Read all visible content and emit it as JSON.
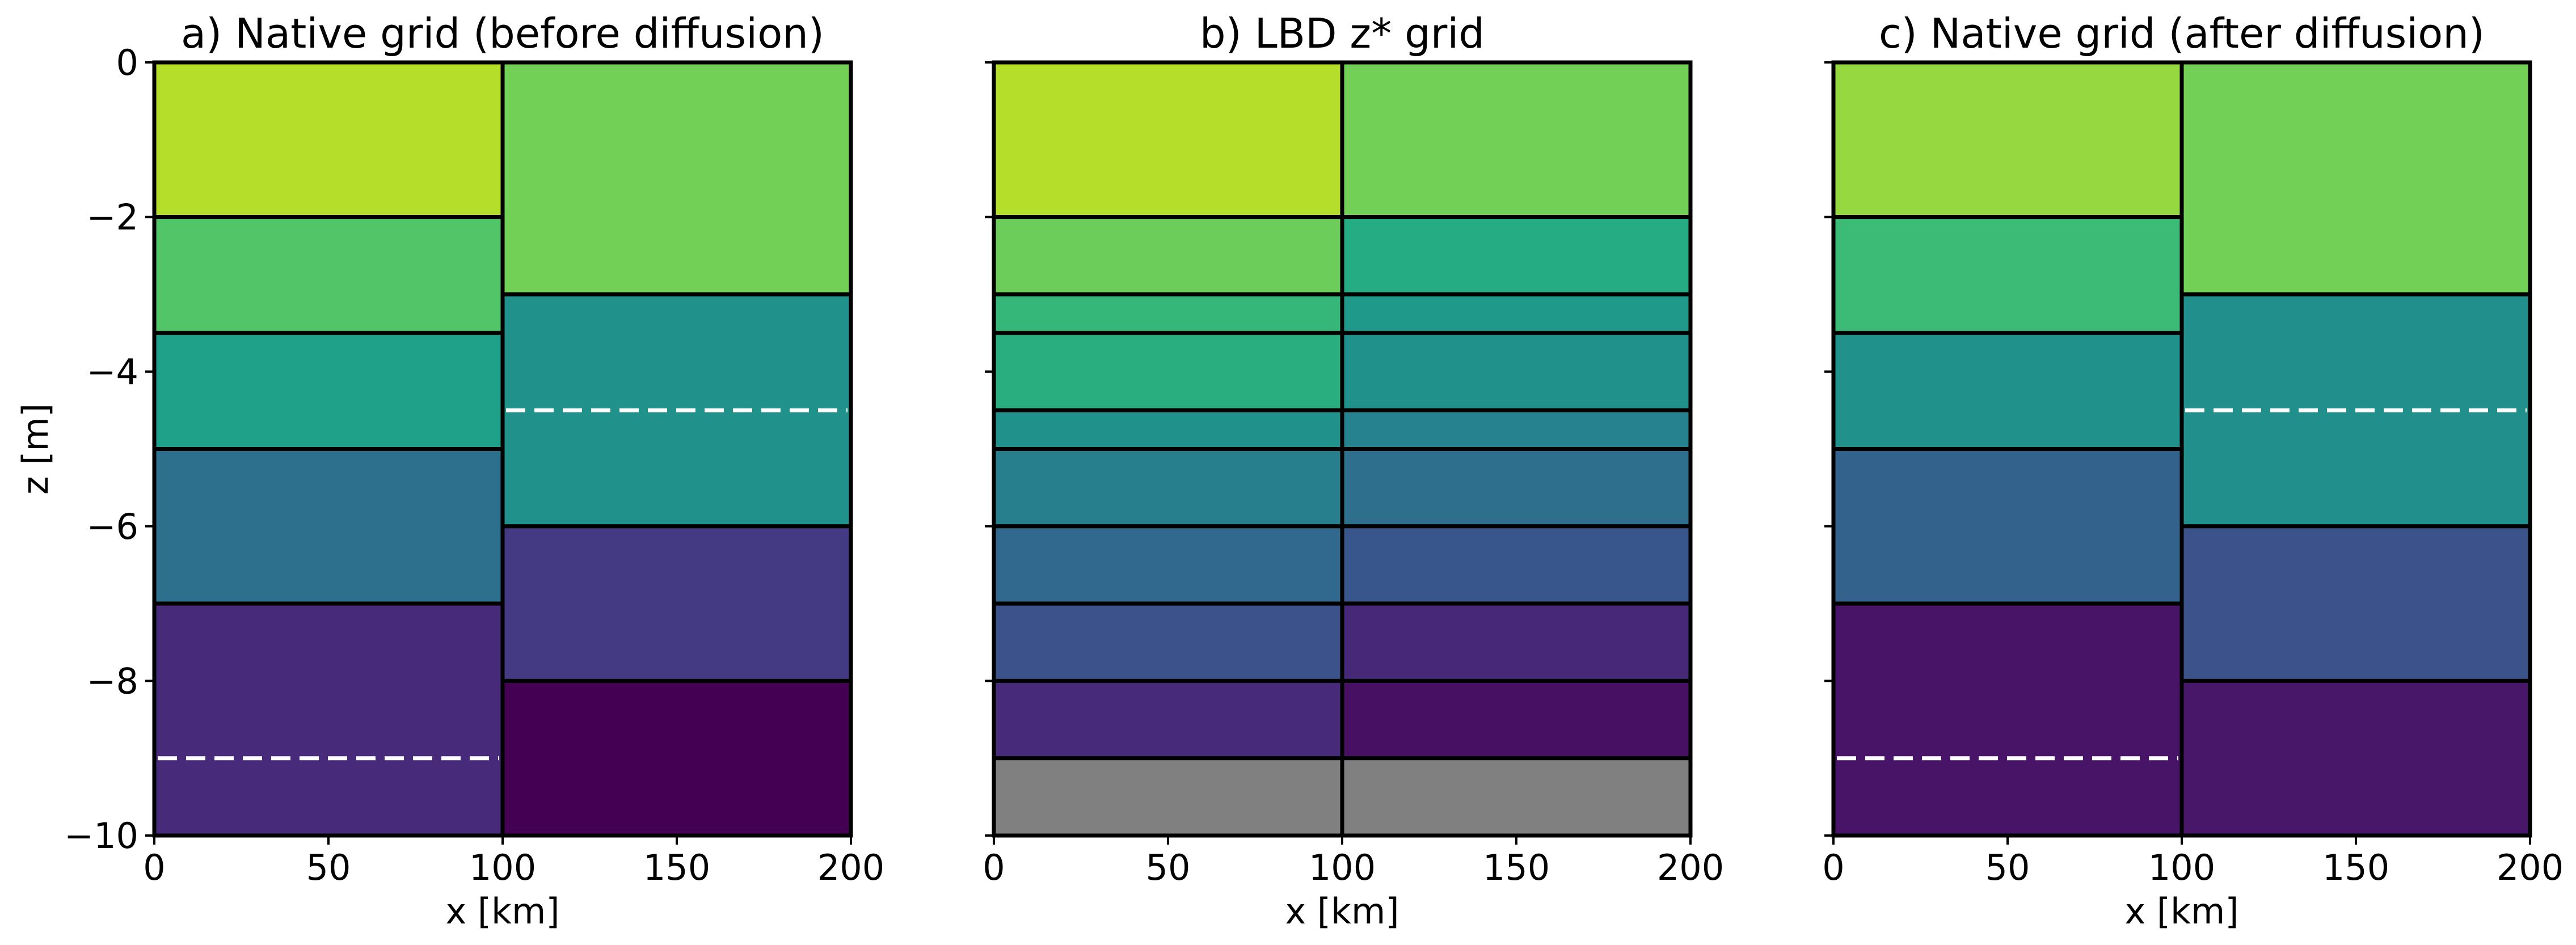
{
  "chart_data": [
    {
      "type": "heatmap",
      "title": "a) Native grid (before diffusion)",
      "xlabel": "x [km]",
      "ylabel": "z [m]",
      "xlim": [
        0,
        200
      ],
      "ylim": [
        -10,
        0
      ],
      "xticks": [
        "0",
        "50",
        "100",
        "150",
        "200"
      ],
      "yticks": [
        "0",
        "−2",
        "−4",
        "−6",
        "−8",
        "−10"
      ],
      "show_yticklabels": true,
      "columns": [
        {
          "x": [
            0,
            100
          ],
          "cells": [
            {
              "top": 0,
              "bottom": -2,
              "color": "#b5de2b"
            },
            {
              "top": -2,
              "bottom": -3.5,
              "color": "#52c569"
            },
            {
              "top": -3.5,
              "bottom": -5,
              "color": "#1fa088"
            },
            {
              "top": -5,
              "bottom": -7,
              "color": "#2d708e"
            },
            {
              "top": -7,
              "bottom": -10,
              "color": "#472a7a"
            }
          ],
          "dashed_lines": [
            -9
          ]
        },
        {
          "x": [
            100,
            200
          ],
          "cells": [
            {
              "top": 0,
              "bottom": -3,
              "color": "#73d056"
            },
            {
              "top": -3,
              "bottom": -6,
              "color": "#21918c"
            },
            {
              "top": -6,
              "bottom": -8,
              "color": "#443983"
            },
            {
              "top": -8,
              "bottom": -10,
              "color": "#440154"
            }
          ],
          "dashed_lines": [
            -4.5
          ]
        }
      ]
    },
    {
      "type": "heatmap",
      "title": "b) LBD z* grid",
      "xlabel": "x [km]",
      "ylabel": "",
      "xlim": [
        0,
        200
      ],
      "ylim": [
        -10,
        0
      ],
      "xticks": [
        "0",
        "50",
        "100",
        "150",
        "200"
      ],
      "yticks": [
        "0",
        "−2",
        "−4",
        "−6",
        "−8",
        "−10"
      ],
      "show_yticklabels": false,
      "columns": [
        {
          "x": [
            0,
            100
          ],
          "cells": [
            {
              "top": 0,
              "bottom": -2,
              "color": "#b5de2b"
            },
            {
              "top": -2,
              "bottom": -3,
              "color": "#6ccd5a"
            },
            {
              "top": -3,
              "bottom": -3.5,
              "color": "#35b779"
            },
            {
              "top": -3.5,
              "bottom": -4.5,
              "color": "#29af7f"
            },
            {
              "top": -4.5,
              "bottom": -5,
              "color": "#21918c"
            },
            {
              "top": -5,
              "bottom": -6,
              "color": "#277f8e"
            },
            {
              "top": -6,
              "bottom": -7,
              "color": "#31688e"
            },
            {
              "top": -7,
              "bottom": -8,
              "color": "#3b528b"
            },
            {
              "top": -8,
              "bottom": -9,
              "color": "#472a7a"
            },
            {
              "top": -9,
              "bottom": -10,
              "color": "#808080"
            }
          ],
          "dashed_lines": []
        },
        {
          "x": [
            100,
            200
          ],
          "cells": [
            {
              "top": 0,
              "bottom": -2,
              "color": "#73d056"
            },
            {
              "top": -2,
              "bottom": -3,
              "color": "#25ac82"
            },
            {
              "top": -3,
              "bottom": -3.5,
              "color": "#1f9a8a"
            },
            {
              "top": -3.5,
              "bottom": -4.5,
              "color": "#21918c"
            },
            {
              "top": -4.5,
              "bottom": -5,
              "color": "#26828e"
            },
            {
              "top": -5,
              "bottom": -6,
              "color": "#2e6f8e"
            },
            {
              "top": -6,
              "bottom": -7,
              "color": "#39568c"
            },
            {
              "top": -7,
              "bottom": -8,
              "color": "#472878"
            },
            {
              "top": -8,
              "bottom": -9,
              "color": "#471063"
            },
            {
              "top": -9,
              "bottom": -10,
              "color": "#808080"
            }
          ],
          "dashed_lines": []
        }
      ]
    },
    {
      "type": "heatmap",
      "title": "c) Native grid (after diffusion)",
      "xlabel": "x [km]",
      "ylabel": "",
      "xlim": [
        0,
        200
      ],
      "ylim": [
        -10,
        0
      ],
      "xticks": [
        "0",
        "50",
        "100",
        "150",
        "200"
      ],
      "yticks": [
        "0",
        "−2",
        "−4",
        "−6",
        "−8",
        "−10"
      ],
      "show_yticklabels": false,
      "columns": [
        {
          "x": [
            0,
            100
          ],
          "cells": [
            {
              "top": 0,
              "bottom": -2,
              "color": "#95d840"
            },
            {
              "top": -2,
              "bottom": -3.5,
              "color": "#3bbb75"
            },
            {
              "top": -3.5,
              "bottom": -5,
              "color": "#21918c"
            },
            {
              "top": -5,
              "bottom": -7,
              "color": "#33638d"
            },
            {
              "top": -7,
              "bottom": -10,
              "color": "#481467"
            }
          ],
          "dashed_lines": [
            -9
          ]
        },
        {
          "x": [
            100,
            200
          ],
          "cells": [
            {
              "top": 0,
              "bottom": -3,
              "color": "#73d056"
            },
            {
              "top": -3,
              "bottom": -6,
              "color": "#21908d"
            },
            {
              "top": -6,
              "bottom": -8,
              "color": "#3b528b"
            },
            {
              "top": -8,
              "bottom": -10,
              "color": "#481769"
            }
          ],
          "dashed_lines": [
            -4.5
          ]
        }
      ]
    }
  ]
}
